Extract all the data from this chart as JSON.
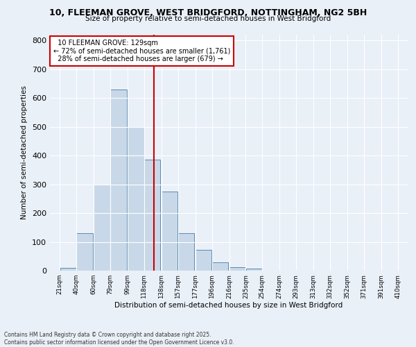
{
  "title1": "10, FLEEMAN GROVE, WEST BRIDGFORD, NOTTINGHAM, NG2 5BH",
  "title2": "Size of property relative to semi-detached houses in West Bridgford",
  "xlabel": "Distribution of semi-detached houses by size in West Bridgford",
  "ylabel": "Number of semi-detached properties",
  "bins": [
    "21sqm",
    "40sqm",
    "60sqm",
    "79sqm",
    "99sqm",
    "118sqm",
    "138sqm",
    "157sqm",
    "177sqm",
    "196sqm",
    "216sqm",
    "235sqm",
    "254sqm",
    "274sqm",
    "293sqm",
    "313sqm",
    "332sqm",
    "352sqm",
    "371sqm",
    "391sqm",
    "410sqm"
  ],
  "bar_values": [
    10,
    130,
    300,
    630,
    500,
    385,
    275,
    130,
    72,
    28,
    13,
    7,
    0,
    0,
    0,
    0,
    0,
    0,
    0,
    0
  ],
  "bar_left_edges": [
    21,
    40,
    60,
    79,
    99,
    118,
    138,
    157,
    177,
    196,
    216,
    235,
    254,
    274,
    293,
    313,
    332,
    352,
    371,
    391
  ],
  "bin_width": 19,
  "property_line_x": 129,
  "property_label": "10 FLEEMAN GROVE: 129sqm",
  "pct_smaller": 72,
  "pct_larger": 28,
  "count_smaller": 1761,
  "count_larger": 679,
  "bar_color": "#c8d8e8",
  "bar_edge_color": "#5a8ab0",
  "line_color": "#cc0000",
  "box_color": "#ffffff",
  "box_edge_color": "#cc0000",
  "bg_color": "#eaf0f8",
  "ylim": [
    0,
    820
  ],
  "yticks": [
    0,
    100,
    200,
    300,
    400,
    500,
    600,
    700,
    800
  ],
  "footnote1": "Contains HM Land Registry data © Crown copyright and database right 2025.",
  "footnote2": "Contains public sector information licensed under the Open Government Licence v3.0."
}
